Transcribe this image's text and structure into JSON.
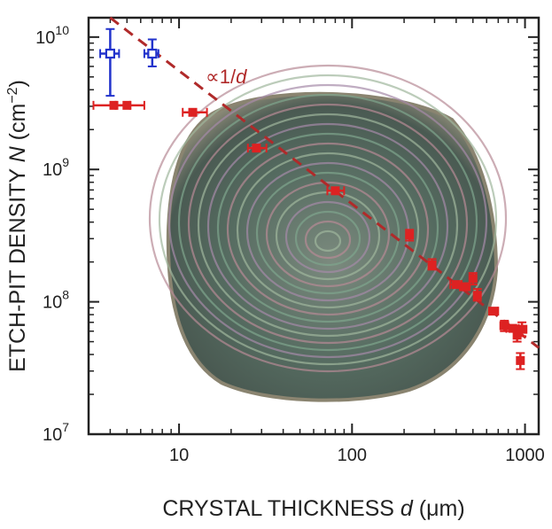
{
  "chart_data": {
    "type": "scatter",
    "xlabel": {
      "main": "CRYSTAL THICKNESS ",
      "var": "d",
      "unit": " (μm)"
    },
    "ylabel": {
      "main": "ETCH-PIT DENSITY ",
      "var": "N",
      "unit_pre": " (cm",
      "unit_exp": "−2",
      "unit_post": ")"
    },
    "x_scale": "log",
    "y_scale": "log",
    "xlim": [
      3,
      1200
    ],
    "ylim": [
      10000000.0,
      14000000000.0
    ],
    "x_ticks": [
      {
        "v": 10,
        "label": "10"
      },
      {
        "v": 100,
        "label": "100"
      },
      {
        "v": 1000,
        "label": "1000"
      }
    ],
    "y_ticks": [
      {
        "v": 10000000.0,
        "base": "10",
        "exp": "7"
      },
      {
        "v": 100000000.0,
        "base": "10",
        "exp": "8"
      },
      {
        "v": 1000000000.0,
        "base": "10",
        "exp": "9"
      },
      {
        "v": 10000000000.0,
        "base": "10",
        "exp": "10"
      }
    ],
    "fit_line": {
      "label_prefix": "∝1/",
      "label_var": "d",
      "color": "#b02a2a",
      "from": [
        4,
        14000000000.0
      ],
      "to": [
        1200,
        45000000.0
      ]
    },
    "inset_image": "wafer-interference-photo",
    "series": [
      {
        "marker": "open-square",
        "color": "#2233cc",
        "points": [
          {
            "x": 4,
            "y": 7500000000.0,
            "xerr": [
              3.5,
              4.5
            ],
            "yerr": [
              3600000000.0,
              11500000000.0
            ]
          },
          {
            "x": 7,
            "y": 7500000000.0,
            "xerr": [
              6.3,
              7.6
            ],
            "yerr": [
              6000000000.0,
              9600000000.0
            ]
          }
        ]
      },
      {
        "marker": "filled-square",
        "color": "#dd2222",
        "points": [
          {
            "x": 4.2,
            "y": 3050000000.0,
            "xerr": [
              3.2,
              5.2
            ],
            "yerr": null
          },
          {
            "x": 5.0,
            "y": 3050000000.0,
            "xerr": [
              4.3,
              6.3
            ],
            "yerr": null
          },
          {
            "x": 12,
            "y": 2700000000.0,
            "xerr": [
              10.5,
              14.5
            ],
            "yerr": null
          },
          {
            "x": 28,
            "y": 1450000000.0,
            "xerr": [
              25,
              32
            ],
            "yerr": null
          },
          {
            "x": 80,
            "y": 690000000.0,
            "xerr": [
              72,
              90
            ],
            "yerr": null
          },
          {
            "x": 215,
            "y": 320000000.0,
            "xerr": null,
            "yerr": [
              290000000.0,
              350000000.0
            ]
          },
          {
            "x": 290,
            "y": 190000000.0,
            "xerr": null,
            "yerr": [
              175000000.0,
              210000000.0
            ]
          },
          {
            "x": 400,
            "y": 135000000.0,
            "xerr": [
              370,
              430
            ],
            "yerr": null
          },
          {
            "x": 450,
            "y": 130000000.0,
            "xerr": [
              420,
              480
            ],
            "yerr": null
          },
          {
            "x": 500,
            "y": 150000000.0,
            "xerr": null,
            "yerr": [
              135000000.0,
              165000000.0
            ]
          },
          {
            "x": 530,
            "y": 112000000.0,
            "xerr": null,
            "yerr": [
              102000000.0,
              125000000.0
            ]
          },
          {
            "x": 660,
            "y": 85000000.0,
            "xerr": [
              620,
              700
            ],
            "yerr": null
          },
          {
            "x": 760,
            "y": 66000000.0,
            "xerr": [
              720,
              800
            ],
            "yerr": [
              60000000.0,
              72000000.0
            ]
          },
          {
            "x": 850,
            "y": 63000000.0,
            "xerr": [
              780,
              920
            ],
            "yerr": null
          },
          {
            "x": 900,
            "y": 56000000.0,
            "xerr": null,
            "yerr": [
              50000000.0,
              63000000.0
            ]
          },
          {
            "x": 960,
            "y": 62000000.0,
            "xerr": [
              900,
              1020
            ],
            "yerr": [
              55000000.0,
              70000000.0
            ]
          },
          {
            "x": 940,
            "y": 36000000.0,
            "xerr": null,
            "yerr": [
              31000000.0,
              41000000.0
            ]
          }
        ]
      }
    ]
  }
}
